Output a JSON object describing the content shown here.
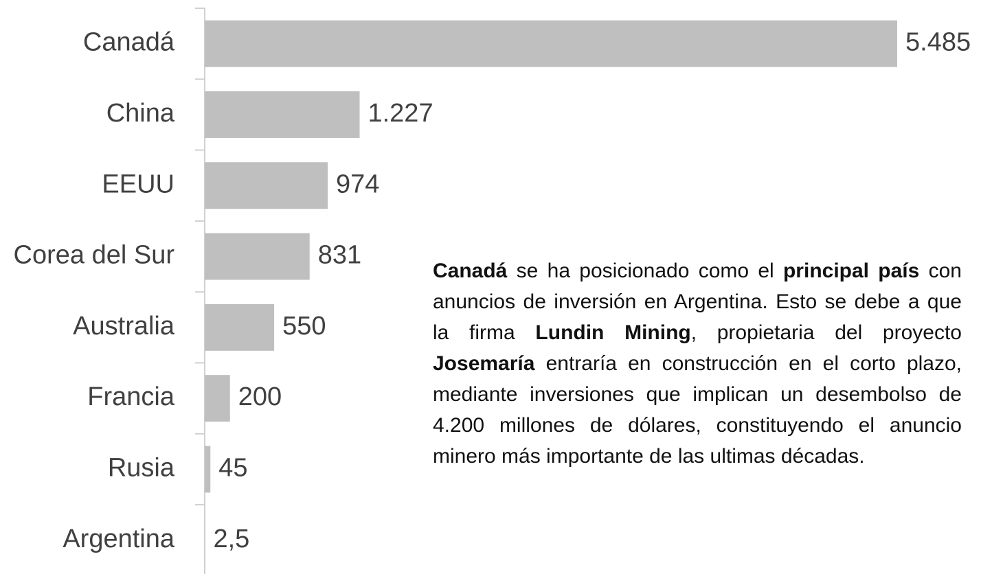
{
  "chart_data": {
    "type": "hbar",
    "categories": [
      "Canadá",
      "China",
      "EEUU",
      "Corea del Sur",
      "Australia",
      "Francia",
      "Rusia",
      "Argentina"
    ],
    "values": [
      5485,
      1227,
      974,
      831,
      550,
      200,
      45,
      2.5
    ],
    "value_labels": [
      "5.485",
      "1.227",
      "974",
      "831",
      "550",
      "200",
      "45",
      "2,5"
    ],
    "color": "#bfbfbf",
    "xlim": [
      0,
      5485
    ],
    "annotation": [
      {
        "text": "Canadá",
        "bold": true
      },
      {
        "text": " se ha posicionado como el ",
        "bold": false
      },
      {
        "text": "principal país",
        "bold": true
      },
      {
        "text": " con anuncios de inversión en Argentina. Esto se debe a que la firma ",
        "bold": false
      },
      {
        "text": "Lundin Mining",
        "bold": true
      },
      {
        "text": ", propietaria del proyecto ",
        "bold": false
      },
      {
        "text": "Josemaría",
        "bold": true
      },
      {
        "text": " entraría en construcción en el corto plazo, mediante inversiones que implican un desembolso de 4.200 millones de dólares, constituyendo el anuncio minero más importante de las ultimas décadas.",
        "bold": false
      }
    ]
  }
}
